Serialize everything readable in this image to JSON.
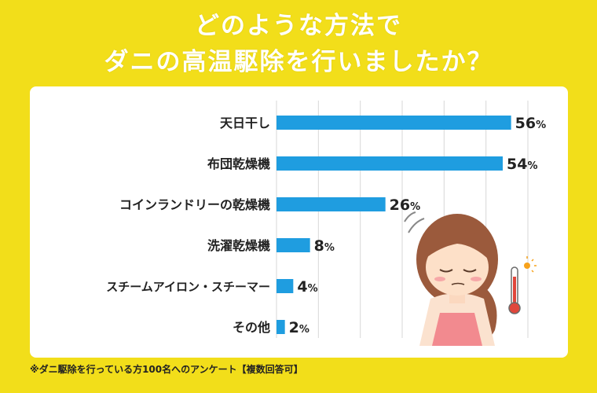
{
  "title_line1": "どのような方法で",
  "title_line2": "ダニの高温駆除を行いましたか？",
  "footnote": "※ダニ駆除を行っている方100名へのアンケート【複数回答可】",
  "colors": {
    "background": "#f2de1a",
    "bar": "#1f9de0",
    "grid": "#d7d7d7"
  },
  "chart_data": {
    "type": "bar",
    "orientation": "horizontal",
    "categories": [
      "天日干し",
      "布団乾燥機",
      "コインランドリーの乾燥機",
      "洗濯乾燥機",
      "スチームアイロン・スチーマー",
      "その他"
    ],
    "values": [
      56,
      54,
      26,
      8,
      4,
      2
    ],
    "value_suffix": "%",
    "xlim": [
      0,
      60
    ],
    "grid": true
  }
}
